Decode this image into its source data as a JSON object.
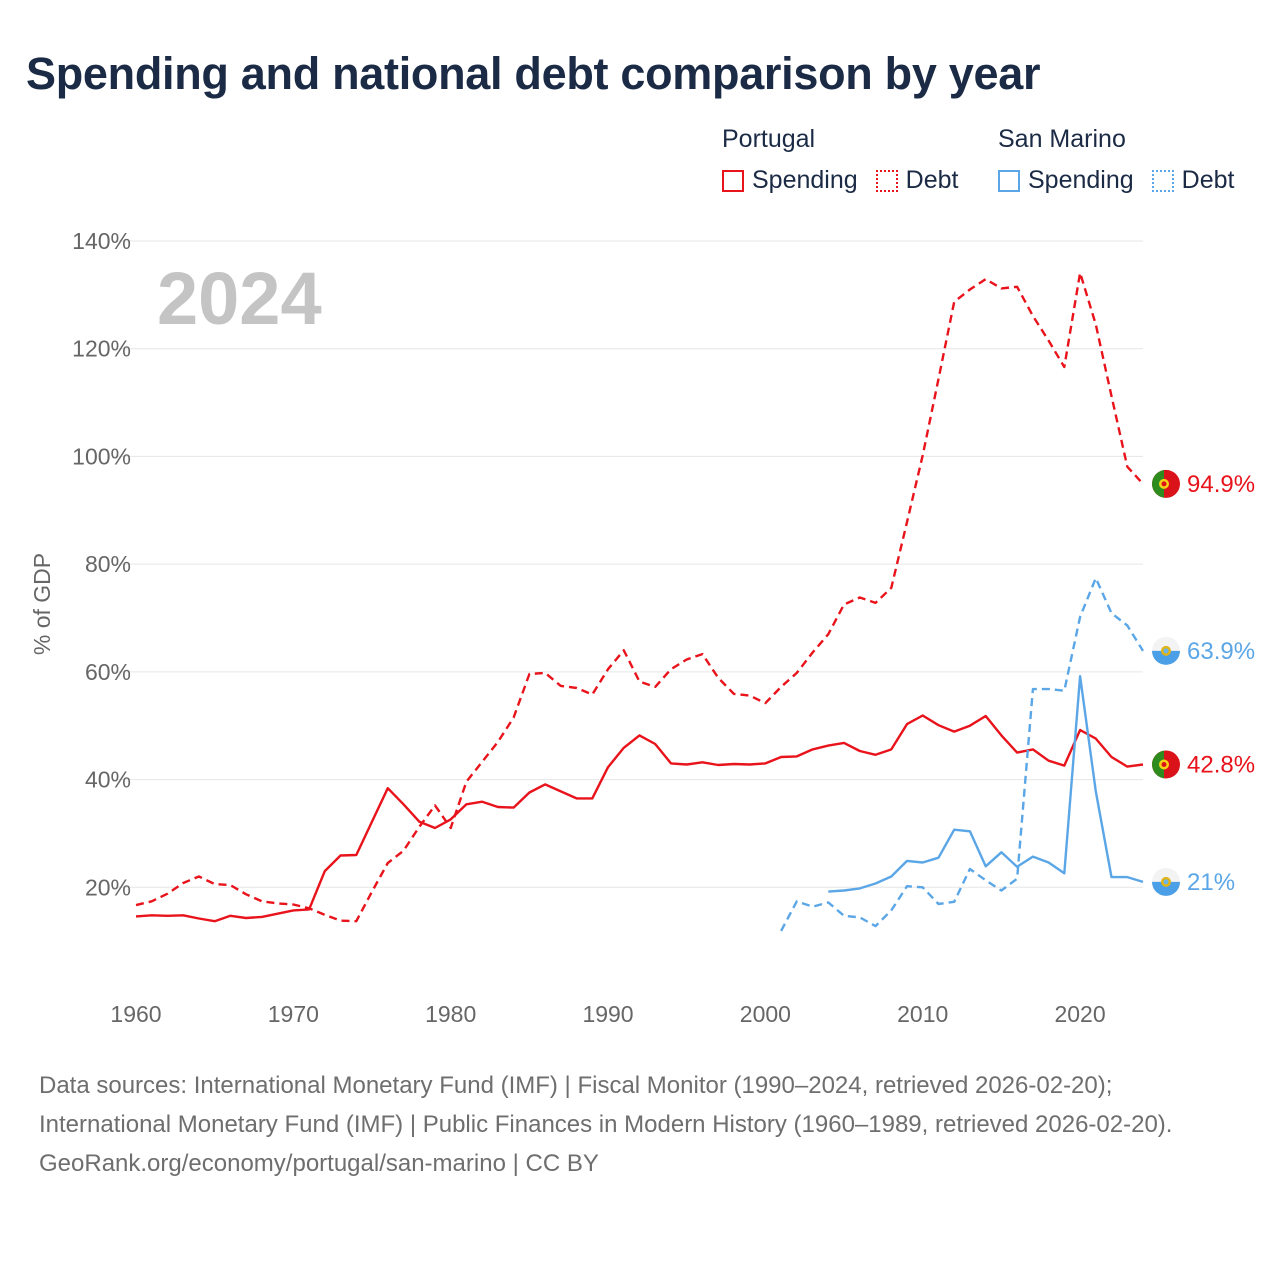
{
  "title": "Spending and national debt comparison by year",
  "legend": {
    "groups": [
      {
        "country": "Portugal",
        "color": "#e8131b",
        "items": [
          "Spending",
          "Debt"
        ]
      },
      {
        "country": "San Marino",
        "color": "#5ba6e6",
        "items": [
          "Spending",
          "Debt"
        ]
      }
    ]
  },
  "year_watermark": "2024",
  "footer": {
    "sources": "Data sources: International Monetary Fund (IMF) | Fiscal Monitor (1990–2024, retrieved 2026-02-20); International Monetary Fund (IMF) | Public Finances in Modern History (1960–1989, retrieved 2026-02-20).",
    "link": "GeoRank.org/economy/portugal/san-marino | CC BY"
  },
  "chart_data": {
    "type": "line",
    "title": "Spending and national debt comparison by year",
    "xlabel": "",
    "ylabel": "% of GDP",
    "xlim": [
      1960,
      2024
    ],
    "ylim": [
      0,
      140
    ],
    "x_ticks": [
      1960,
      1970,
      1980,
      1990,
      2000,
      2010,
      2020
    ],
    "y_ticks": [
      20,
      40,
      60,
      80,
      100,
      120,
      140
    ],
    "y_tick_labels": [
      "20%",
      "40%",
      "60%",
      "80%",
      "100%",
      "120%",
      "140%"
    ],
    "grid": true,
    "series": [
      {
        "name": "Portugal Debt",
        "country": "Portugal",
        "metric": "Debt",
        "style": "dashed",
        "color": "#e8131b",
        "end_label": "94.9%",
        "points": [
          [
            1960,
            16.7
          ],
          [
            1961,
            17.4
          ],
          [
            1962,
            18.8
          ],
          [
            1963,
            20.8
          ],
          [
            1964,
            22
          ],
          [
            1965,
            20.6
          ],
          [
            1966,
            20.4
          ],
          [
            1967,
            18.7
          ],
          [
            1968,
            17.4
          ],
          [
            1969,
            17
          ],
          [
            1970,
            16.8
          ],
          [
            1971,
            16.1
          ],
          [
            1972,
            14.9
          ],
          [
            1973,
            13.8
          ],
          [
            1974,
            13.7
          ],
          [
            1975,
            19.2
          ],
          [
            1976,
            24.5
          ],
          [
            1977,
            26.8
          ],
          [
            1978,
            31.2
          ],
          [
            1979,
            35.2
          ],
          [
            1980,
            31
          ],
          [
            1981,
            39.6
          ],
          [
            1982,
            43.3
          ],
          [
            1983,
            47
          ],
          [
            1984,
            51.5
          ],
          [
            1985,
            59.6
          ],
          [
            1986,
            59.8
          ],
          [
            1987,
            57.4
          ],
          [
            1988,
            57
          ],
          [
            1989,
            55.8
          ],
          [
            1990,
            60.5
          ],
          [
            1991,
            64
          ],
          [
            1992,
            58.2
          ],
          [
            1993,
            57.2
          ],
          [
            1994,
            60.5
          ],
          [
            1995,
            62.3
          ],
          [
            1996,
            63.3
          ],
          [
            1997,
            58.9
          ],
          [
            1998,
            55.9
          ],
          [
            1999,
            55.6
          ],
          [
            2000,
            54.2
          ],
          [
            2001,
            57.2
          ],
          [
            2002,
            59.8
          ],
          [
            2003,
            63.6
          ],
          [
            2004,
            67
          ],
          [
            2005,
            72.5
          ],
          [
            2006,
            73.8
          ],
          [
            2007,
            72.8
          ],
          [
            2008,
            75.6
          ],
          [
            2009,
            87.8
          ],
          [
            2010,
            100.2
          ],
          [
            2011,
            114.4
          ],
          [
            2012,
            128.7
          ],
          [
            2013,
            131
          ],
          [
            2014,
            132.9
          ],
          [
            2015,
            131.2
          ],
          [
            2016,
            131.5
          ],
          [
            2017,
            126.1
          ],
          [
            2018,
            121.5
          ],
          [
            2019,
            116.6
          ],
          [
            2020,
            134.1
          ],
          [
            2021,
            124.5
          ],
          [
            2022,
            111.2
          ],
          [
            2023,
            98.1
          ],
          [
            2024,
            94.9
          ]
        ]
      },
      {
        "name": "Portugal Spending",
        "country": "Portugal",
        "metric": "Spending",
        "style": "solid",
        "color": "#e8131b",
        "end_label": "42.8%",
        "points": [
          [
            1960,
            14.6
          ],
          [
            1961,
            14.8
          ],
          [
            1962,
            14.7
          ],
          [
            1963,
            14.8
          ],
          [
            1964,
            14.2
          ],
          [
            1965,
            13.7
          ],
          [
            1966,
            14.7
          ],
          [
            1967,
            14.3
          ],
          [
            1968,
            14.5
          ],
          [
            1969,
            15.1
          ],
          [
            1970,
            15.7
          ],
          [
            1971,
            15.9
          ],
          [
            1972,
            23
          ],
          [
            1973,
            25.9
          ],
          [
            1974,
            26
          ],
          [
            1975,
            32.2
          ],
          [
            1976,
            38.4
          ],
          [
            1977,
            35.4
          ],
          [
            1978,
            32.2
          ],
          [
            1979,
            31
          ],
          [
            1980,
            32.6
          ],
          [
            1981,
            35.4
          ],
          [
            1982,
            35.9
          ],
          [
            1983,
            34.9
          ],
          [
            1984,
            34.8
          ],
          [
            1985,
            37.6
          ],
          [
            1986,
            39.1
          ],
          [
            1987,
            37.8
          ],
          [
            1988,
            36.5
          ],
          [
            1989,
            36.5
          ],
          [
            1990,
            42.3
          ],
          [
            1991,
            45.9
          ],
          [
            1992,
            48.2
          ],
          [
            1993,
            46.6
          ],
          [
            1994,
            43
          ],
          [
            1995,
            42.8
          ],
          [
            1996,
            43.2
          ],
          [
            1997,
            42.7
          ],
          [
            1998,
            42.9
          ],
          [
            1999,
            42.8
          ],
          [
            2000,
            43
          ],
          [
            2001,
            44.2
          ],
          [
            2002,
            44.3
          ],
          [
            2003,
            45.6
          ],
          [
            2004,
            46.3
          ],
          [
            2005,
            46.8
          ],
          [
            2006,
            45.3
          ],
          [
            2007,
            44.6
          ],
          [
            2008,
            45.6
          ],
          [
            2009,
            50.3
          ],
          [
            2010,
            51.9
          ],
          [
            2011,
            50.1
          ],
          [
            2012,
            48.9
          ],
          [
            2013,
            50
          ],
          [
            2014,
            51.8
          ],
          [
            2015,
            48.2
          ],
          [
            2016,
            45
          ],
          [
            2017,
            45.6
          ],
          [
            2018,
            43.5
          ],
          [
            2019,
            42.6
          ],
          [
            2020,
            49.2
          ],
          [
            2021,
            47.6
          ],
          [
            2022,
            44.2
          ],
          [
            2023,
            42.4
          ],
          [
            2024,
            42.8
          ]
        ]
      },
      {
        "name": "San Marino Debt",
        "country": "San Marino",
        "metric": "Debt",
        "style": "dashed",
        "color": "#5ba6e6",
        "end_label": "63.9%",
        "points": [
          [
            2001,
            11.9
          ],
          [
            2002,
            17.4
          ],
          [
            2003,
            16.4
          ],
          [
            2004,
            17.2
          ],
          [
            2005,
            14.7
          ],
          [
            2006,
            14.4
          ],
          [
            2007,
            12.8
          ],
          [
            2008,
            15.7
          ],
          [
            2009,
            20.2
          ],
          [
            2010,
            20
          ],
          [
            2011,
            16.9
          ],
          [
            2012,
            17.3
          ],
          [
            2013,
            23.4
          ],
          [
            2014,
            21.3
          ],
          [
            2015,
            19.4
          ],
          [
            2016,
            21.6
          ],
          [
            2017,
            56.8
          ],
          [
            2018,
            56.8
          ],
          [
            2019,
            56.5
          ],
          [
            2020,
            70.2
          ],
          [
            2021,
            77.4
          ],
          [
            2022,
            70.9
          ],
          [
            2023,
            68.6
          ],
          [
            2024,
            63.9
          ]
        ]
      },
      {
        "name": "San Marino Spending",
        "country": "San Marino",
        "metric": "Spending",
        "style": "solid",
        "color": "#5ba6e6",
        "end_label": "21%",
        "points": [
          [
            2004,
            19.2
          ],
          [
            2005,
            19.4
          ],
          [
            2006,
            19.8
          ],
          [
            2007,
            20.7
          ],
          [
            2008,
            22
          ],
          [
            2009,
            24.9
          ],
          [
            2010,
            24.6
          ],
          [
            2011,
            25.5
          ],
          [
            2012,
            30.7
          ],
          [
            2013,
            30.4
          ],
          [
            2014,
            23.9
          ],
          [
            2015,
            26.5
          ],
          [
            2016,
            23.8
          ],
          [
            2017,
            25.7
          ],
          [
            2018,
            24.6
          ],
          [
            2019,
            22.6
          ],
          [
            2020,
            59.2
          ],
          [
            2021,
            37.8
          ],
          [
            2022,
            21.9
          ],
          [
            2023,
            21.9
          ],
          [
            2024,
            21
          ]
        ]
      }
    ]
  }
}
